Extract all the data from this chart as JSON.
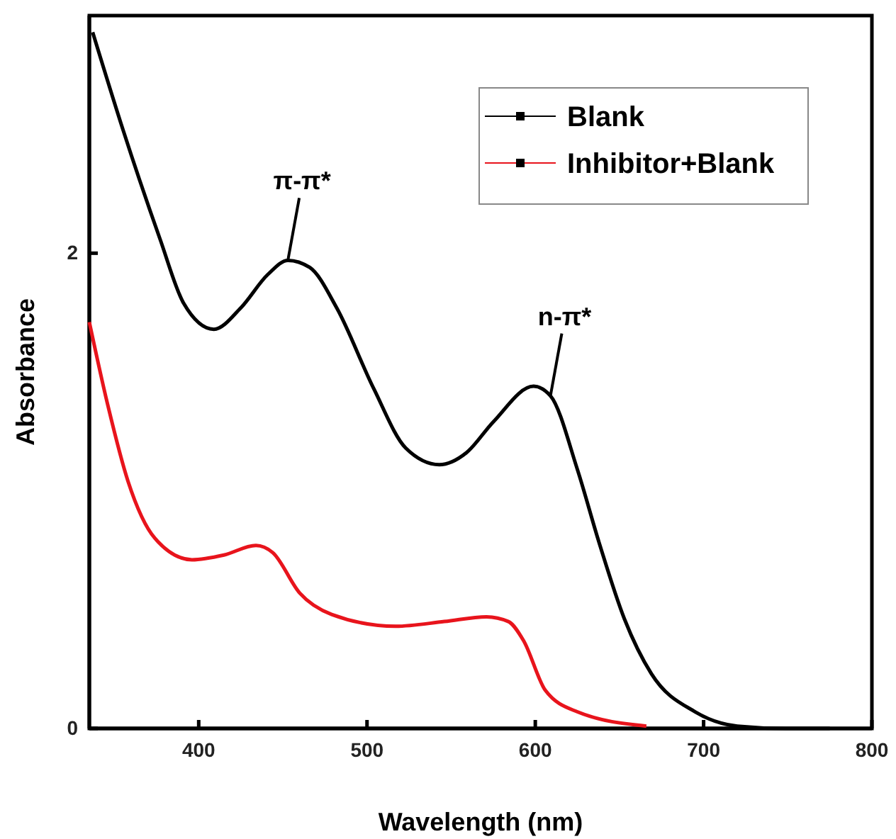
{
  "chart_data": {
    "type": "line",
    "xlabel": "Wavelength (nm)",
    "ylabel": "Absorbance",
    "xlim": [
      335,
      800
    ],
    "xticks": [
      400,
      500,
      600,
      700,
      800
    ],
    "ylim": [
      0,
      3
    ],
    "yticks": [
      0,
      2
    ],
    "grid": false,
    "legend": "top right",
    "series": [
      {
        "name": "Blank",
        "color": "#000000",
        "x": [
          337,
          355,
          377,
          391,
          409,
          425,
          441,
          453,
          466,
          482,
          504,
          523,
          543,
          559,
          575,
          599,
          609,
          625,
          638,
          653,
          669,
          695,
          720,
          749,
          775
        ],
        "values": [
          2.93,
          2.52,
          2.06,
          1.79,
          1.68,
          1.77,
          1.91,
          1.97,
          1.94,
          1.77,
          1.43,
          1.18,
          1.11,
          1.16,
          1.29,
          1.44,
          1.4,
          1.09,
          0.78,
          0.46,
          0.23,
          0.07,
          0.01,
          0,
          0
        ]
      },
      {
        "name": "Inhibitor+Blank",
        "color": "#e8141c",
        "x": [
          335,
          346,
          358,
          374,
          396,
          415,
          434,
          444,
          460,
          479,
          517,
          546,
          571,
          584,
          593,
          606,
          625,
          666
        ],
        "values": [
          1.71,
          1.36,
          1.04,
          0.8,
          0.71,
          0.73,
          0.77,
          0.74,
          0.57,
          0.48,
          0.43,
          0.45,
          0.47,
          0.45,
          0.37,
          0.16,
          0.07,
          0.01
        ]
      }
    ],
    "annotations": [
      {
        "text": "π-π*",
        "x": 453,
        "y": 1.97
      },
      {
        "text": "n-π*",
        "x": 609,
        "y": 1.4
      }
    ]
  }
}
